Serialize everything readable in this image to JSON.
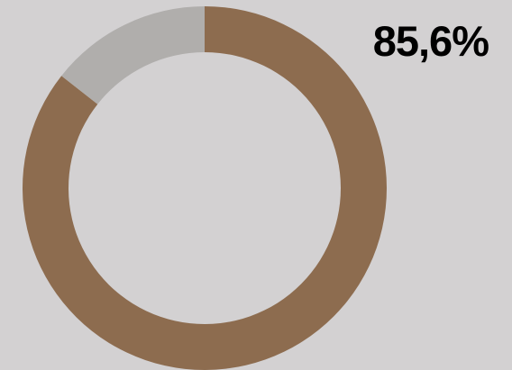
{
  "chart_data": {
    "type": "pie",
    "variant": "donut",
    "slices": [
      {
        "label": "",
        "value": 85.6,
        "color": "#8d6c4f"
      },
      {
        "label": "",
        "value": 14.4,
        "color": "#b0aeac"
      }
    ],
    "data_label": "85,6%",
    "background": "#d3d1d2"
  }
}
